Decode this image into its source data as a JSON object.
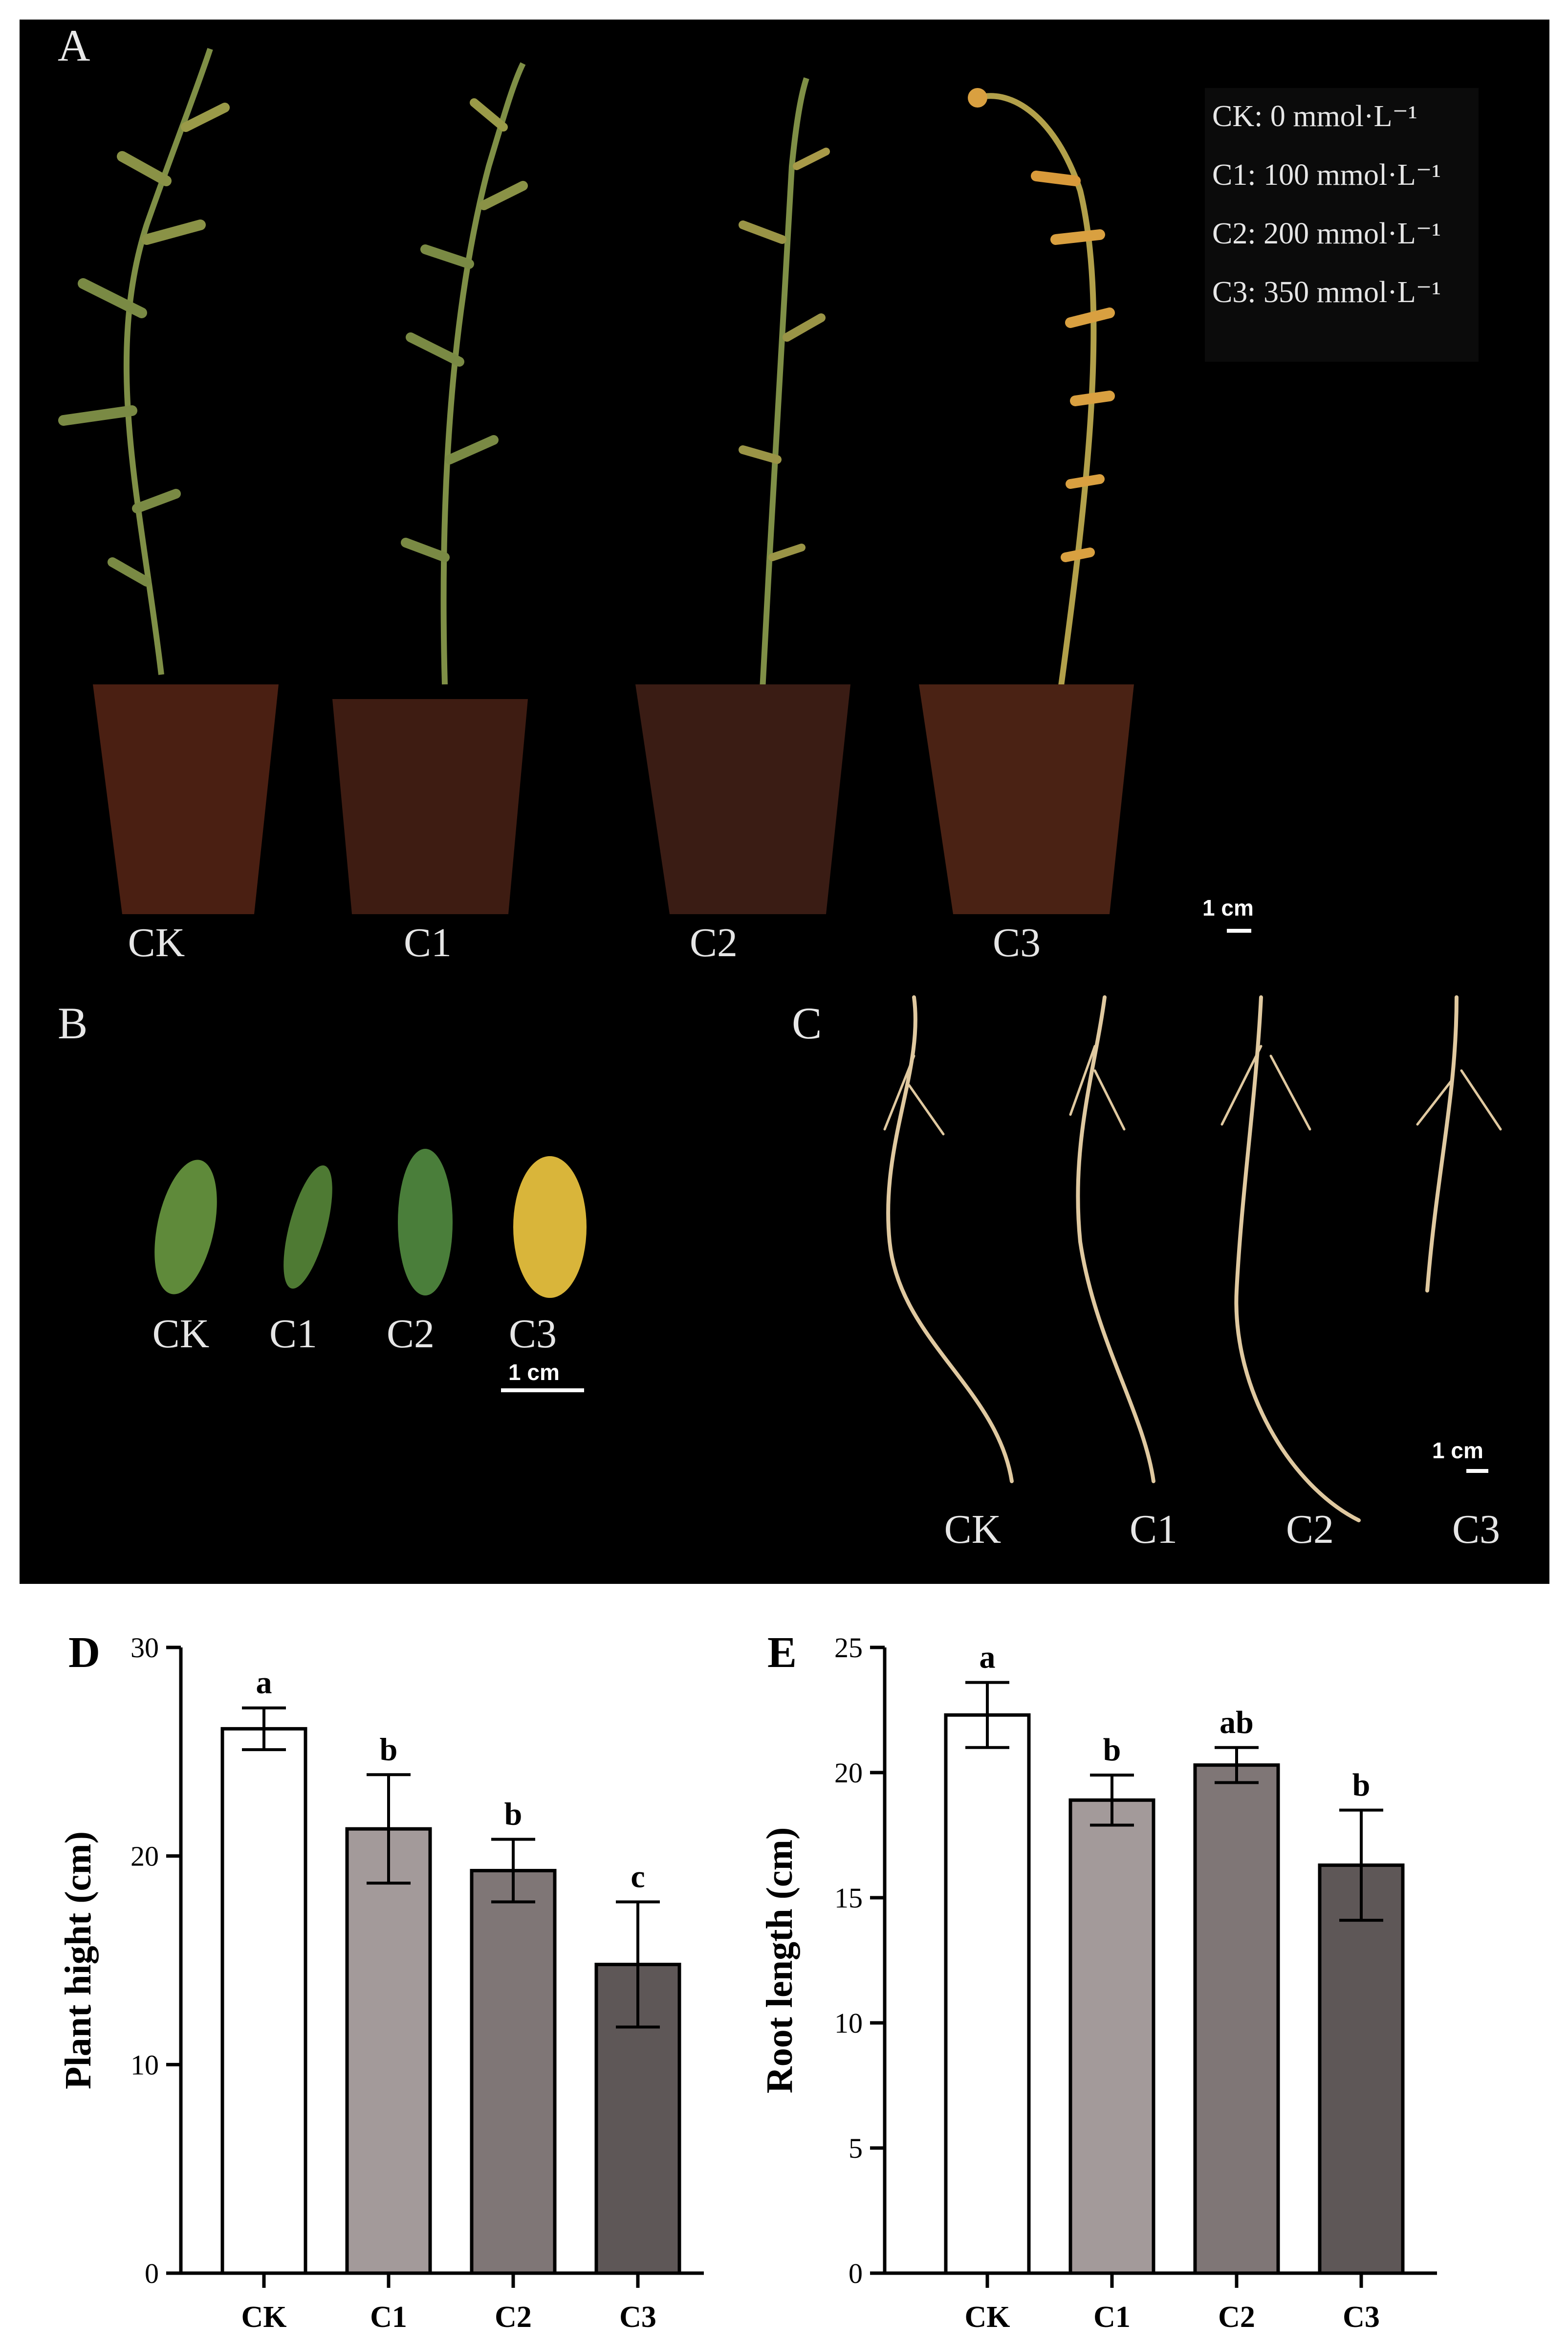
{
  "panels": {
    "A": {
      "letter": "A",
      "labels": [
        "CK",
        "C1",
        "C2",
        "C3"
      ],
      "legend": [
        "CK: 0 mmol·L⁻¹",
        "C1: 100 mmol·L⁻¹",
        "C2: 200 mmol·L⁻¹",
        "C3: 350 mmol·L⁻¹"
      ],
      "scale": "1 cm"
    },
    "B": {
      "letter": "B",
      "labels": [
        "CK",
        "C1",
        "C2",
        "C3"
      ],
      "scale": "1 cm",
      "leaf_colors": [
        "#5f8a3a",
        "#4e7a33",
        "#4a7e3a",
        "#d9b53a"
      ]
    },
    "C": {
      "letter": "C",
      "labels": [
        "CK",
        "C1",
        "C2",
        "C3"
      ],
      "scale": "1 cm"
    }
  },
  "chart_data": [
    {
      "panel": "D",
      "type": "bar",
      "categories": [
        "CK",
        "C1",
        "C2",
        "C3"
      ],
      "values": [
        26.1,
        21.3,
        19.3,
        14.8
      ],
      "errors": [
        1.0,
        2.6,
        1.5,
        3.0
      ],
      "significance": [
        "a",
        "b",
        "b",
        "c"
      ],
      "ylabel": "Plant hight (cm)",
      "ylim": [
        0,
        30
      ],
      "yticks": [
        0,
        10,
        20,
        30
      ],
      "bar_colors": [
        "#ffffff",
        "#a39a9a",
        "#7f7676",
        "#5e5757"
      ]
    },
    {
      "panel": "E",
      "type": "bar",
      "categories": [
        "CK",
        "C1",
        "C2",
        "C3"
      ],
      "values": [
        22.3,
        18.9,
        20.3,
        16.3
      ],
      "errors": [
        1.3,
        1.0,
        0.7,
        2.2
      ],
      "significance": [
        "a",
        "b",
        "ab",
        "b"
      ],
      "ylabel": "Root length (cm)",
      "ylim": [
        0,
        25
      ],
      "yticks": [
        0,
        5,
        10,
        15,
        20,
        25
      ],
      "bar_colors": [
        "#ffffff",
        "#a39a9a",
        "#7f7676",
        "#5e5757"
      ]
    }
  ]
}
